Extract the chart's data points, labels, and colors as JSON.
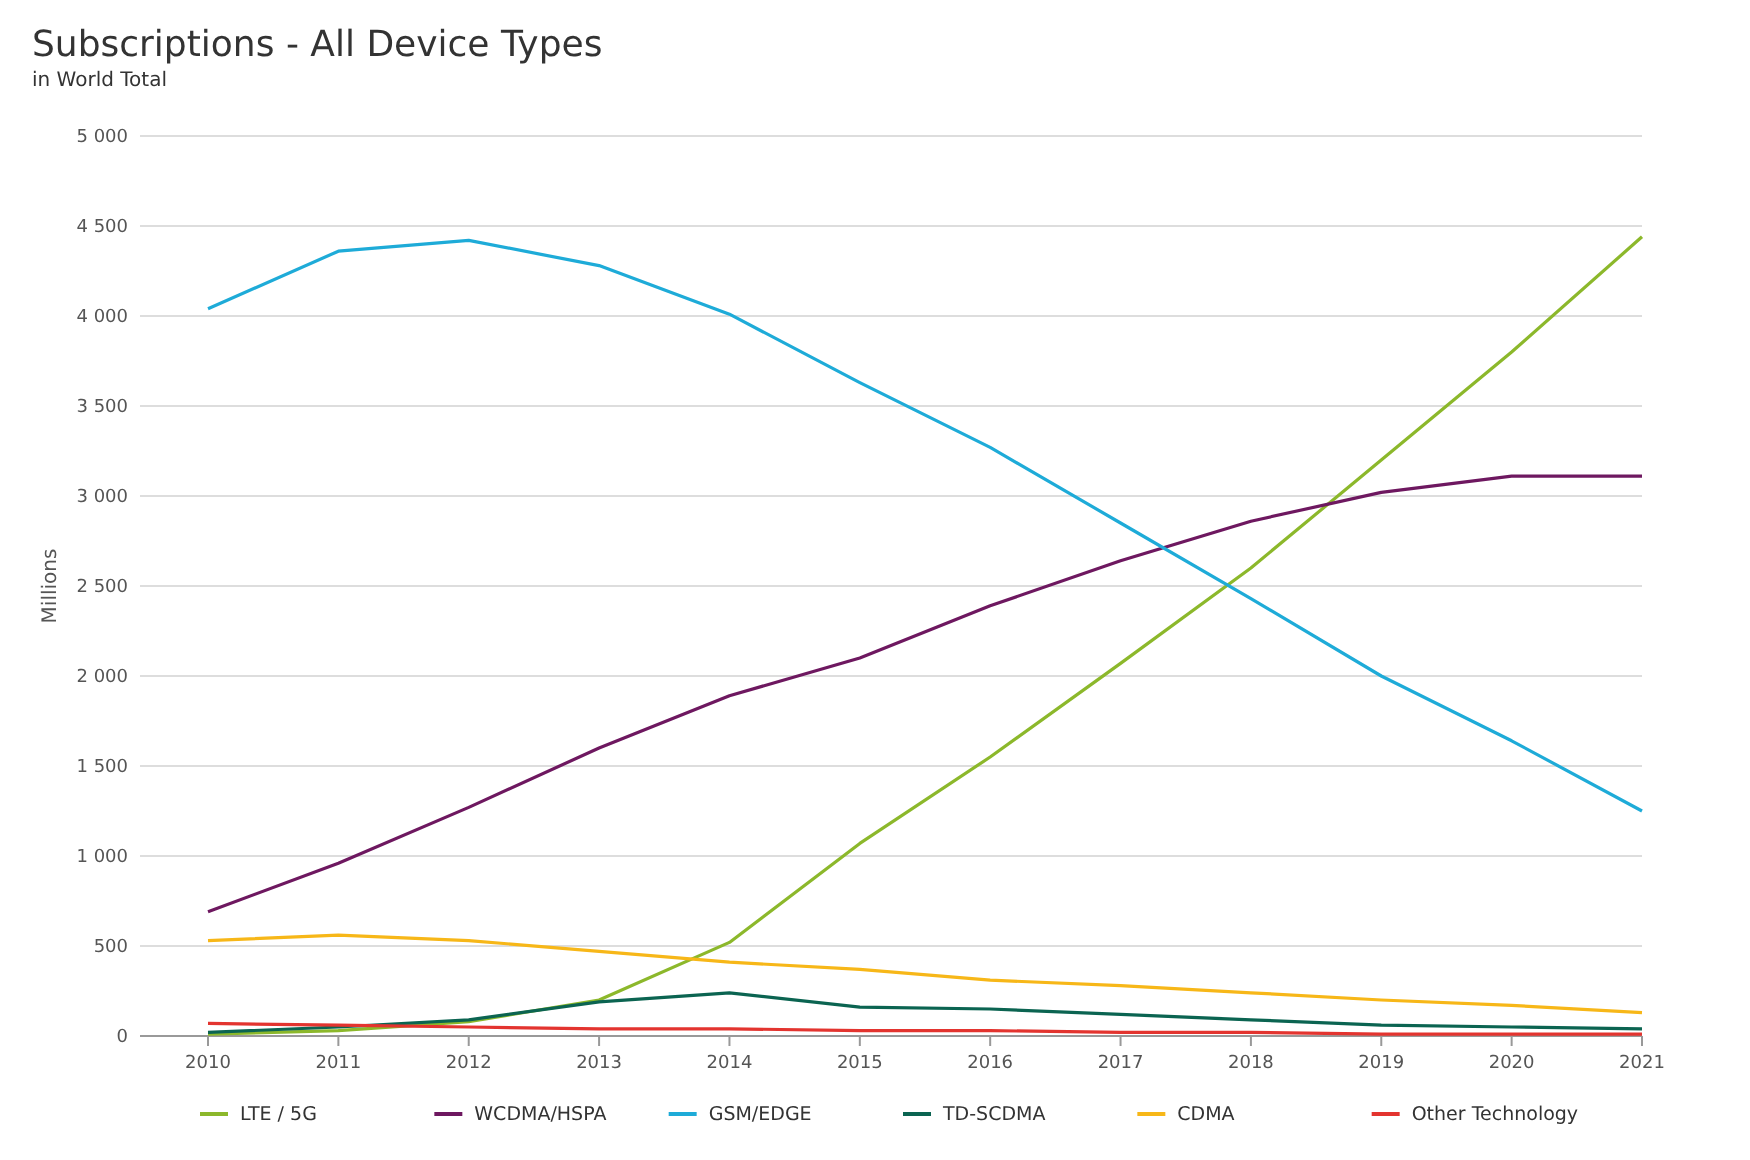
{
  "chart_data": {
    "type": "line",
    "title": "Subscriptions - All Device Types",
    "subtitle": "in World Total",
    "ylabel": "Millions",
    "categories": [
      "2010",
      "2011",
      "2012",
      "2013",
      "2014",
      "2015",
      "2016",
      "2017",
      "2018",
      "2019",
      "2020",
      "2021"
    ],
    "series": [
      {
        "name": "LTE / 5G",
        "color": "#8cb82b",
        "values": [
          10,
          30,
          80,
          200,
          520,
          1070,
          1550,
          2070,
          2600,
          3200,
          3800,
          4440
        ]
      },
      {
        "name": "WCDMA/HSPA",
        "color": "#6e1860",
        "values": [
          690,
          960,
          1270,
          1600,
          1890,
          2100,
          2390,
          2640,
          2860,
          3020,
          3110,
          3110
        ]
      },
      {
        "name": "GSM/EDGE",
        "color": "#1eabd8",
        "values": [
          4040,
          4360,
          4420,
          4280,
          4010,
          3630,
          3270,
          2850,
          2430,
          2000,
          1640,
          1250
        ]
      },
      {
        "name": "TD-SCDMA",
        "color": "#0b6451",
        "values": [
          20,
          50,
          90,
          190,
          240,
          160,
          150,
          120,
          90,
          60,
          50,
          40
        ]
      },
      {
        "name": "CDMA",
        "color": "#f7b718",
        "values": [
          530,
          560,
          530,
          470,
          410,
          370,
          310,
          280,
          240,
          200,
          170,
          130
        ]
      },
      {
        "name": "Other Technology",
        "color": "#e3342f",
        "values": [
          70,
          60,
          50,
          40,
          40,
          30,
          30,
          20,
          20,
          10,
          10,
          10
        ]
      }
    ],
    "ylim": [
      0,
      5000
    ],
    "yticks": [
      0,
      {
        "value": 500,
        "label": "500"
      },
      {
        "value": 1000,
        "label": "1 000"
      },
      {
        "value": 1500,
        "label": "1 500"
      },
      {
        "value": 2000,
        "label": "2 000"
      },
      {
        "value": 2500,
        "label": "2 500"
      },
      {
        "value": 3000,
        "label": "3 000"
      },
      {
        "value": 3500,
        "label": "3 500"
      },
      {
        "value": 4000,
        "label": "4 000"
      },
      {
        "value": 4500,
        "label": "4 500"
      },
      {
        "value": 5000,
        "label": "5 000"
      }
    ],
    "grid": "y",
    "legend": "bottom",
    "marker": "none",
    "line_style": "solid"
  }
}
